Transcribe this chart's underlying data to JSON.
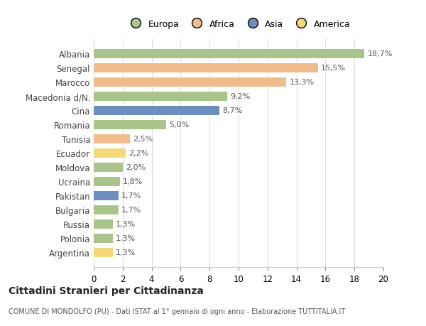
{
  "categories": [
    "Albania",
    "Senegal",
    "Marocco",
    "Macedonia d/N.",
    "Cina",
    "Romania",
    "Tunisia",
    "Ecuador",
    "Moldova",
    "Ucraina",
    "Pakistan",
    "Bulgaria",
    "Russia",
    "Polonia",
    "Argentina"
  ],
  "values": [
    18.7,
    15.5,
    13.3,
    9.2,
    8.7,
    5.0,
    2.5,
    2.2,
    2.0,
    1.8,
    1.7,
    1.7,
    1.3,
    1.3,
    1.3
  ],
  "labels": [
    "18,7%",
    "15,5%",
    "13,3%",
    "9,2%",
    "8,7%",
    "5,0%",
    "2,5%",
    "2,2%",
    "2,0%",
    "1,8%",
    "1,7%",
    "1,7%",
    "1,3%",
    "1,3%",
    "1,3%"
  ],
  "colors": [
    "#a8c48a",
    "#f0bc8c",
    "#f0bc8c",
    "#a8c48a",
    "#6b8ebf",
    "#a8c48a",
    "#f0bc8c",
    "#f5d87a",
    "#a8c48a",
    "#a8c48a",
    "#6b8ebf",
    "#a8c48a",
    "#a8c48a",
    "#a8c48a",
    "#f5d87a"
  ],
  "legend_labels": [
    "Europa",
    "Africa",
    "Asia",
    "America"
  ],
  "legend_colors": [
    "#a8c48a",
    "#f0bc8c",
    "#6b8ebf",
    "#f5d87a"
  ],
  "title": "Cittadini Stranieri per Cittadinanza",
  "subtitle": "COMUNE DI MONDOLFO (PU) - Dati ISTAT al 1° gennaio di ogni anno - Elaborazione TUTTITALIA.IT",
  "xlim": [
    0,
    20
  ],
  "xticks": [
    0,
    2,
    4,
    6,
    8,
    10,
    12,
    14,
    16,
    18,
    20
  ],
  "bg_color": "#ffffff",
  "grid_color": "#dddddd"
}
